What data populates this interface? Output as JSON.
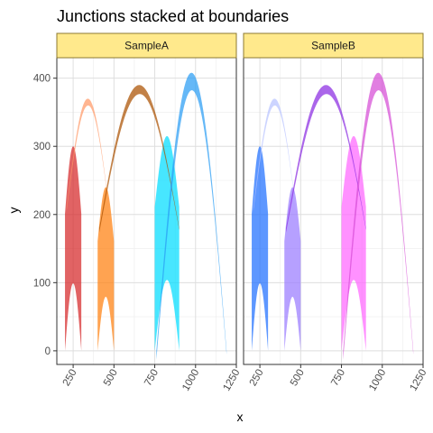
{
  "chart_data": {
    "type": "area",
    "title": "Junctions stacked at boundaries",
    "xlabel": "x",
    "ylabel": "y",
    "xlim": [
      150,
      1250
    ],
    "ylim": [
      -20,
      430
    ],
    "x_ticks": [
      250,
      500,
      750,
      1000,
      1250
    ],
    "x_tick_labels": [
      "250",
      "500",
      "750",
      "1000",
      "1250"
    ],
    "y_ticks": [
      0,
      100,
      200,
      300,
      400
    ],
    "y_tick_labels": [
      "0",
      "100",
      "200",
      "300",
      "400"
    ],
    "x_tick_label_rotation_deg": -60,
    "grid": true,
    "legend": "none",
    "facets": [
      {
        "label": "SampleA",
        "strip_fill": "#ffe98c",
        "strip_border": "#8c7a30",
        "shapes": [
          {
            "kind": "exon",
            "x": [
              200,
              300
            ],
            "y_base": 0,
            "y_top": 300,
            "fill": "#d62728"
          },
          {
            "kind": "exon",
            "x": [
              400,
              500
            ],
            "y_base": 0,
            "y_top": 240,
            "fill": "#ff7f0e"
          },
          {
            "kind": "exon",
            "x": [
              750,
              900
            ],
            "y_base": 0,
            "y_top": 315,
            "fill": "#00dcff"
          },
          {
            "kind": "arc",
            "x": [
              210,
              470
            ],
            "y_base": 210,
            "y_top": 370,
            "fill": "#ff9966"
          },
          {
            "kind": "arc",
            "x": [
              410,
              900
            ],
            "y_base": 180,
            "y_top": 390,
            "fill": "#aa5000"
          },
          {
            "kind": "arc",
            "x": [
              760,
              1190
            ],
            "y_base": 0,
            "y_top": 408,
            "fill": "#2a9df4"
          }
        ]
      },
      {
        "label": "SampleB",
        "strip_fill": "#ffe98c",
        "strip_border": "#8c7a30",
        "shapes": [
          {
            "kind": "exon",
            "x": [
              200,
              300
            ],
            "y_base": 0,
            "y_top": 300,
            "fill": "#1f6fff"
          },
          {
            "kind": "exon",
            "x": [
              400,
              500
            ],
            "y_base": 0,
            "y_top": 240,
            "fill": "#9a7cff"
          },
          {
            "kind": "exon",
            "x": [
              750,
              900
            ],
            "y_base": 0,
            "y_top": 315,
            "fill": "#ff66ff"
          },
          {
            "kind": "arc",
            "x": [
              210,
              470
            ],
            "y_base": 210,
            "y_top": 370,
            "fill": "#b8c4ff"
          },
          {
            "kind": "arc",
            "x": [
              410,
              900
            ],
            "y_base": 180,
            "y_top": 390,
            "fill": "#8a2be2"
          },
          {
            "kind": "arc",
            "x": [
              760,
              1190
            ],
            "y_base": 0,
            "y_top": 408,
            "fill": "#d64cd6"
          }
        ]
      }
    ]
  }
}
